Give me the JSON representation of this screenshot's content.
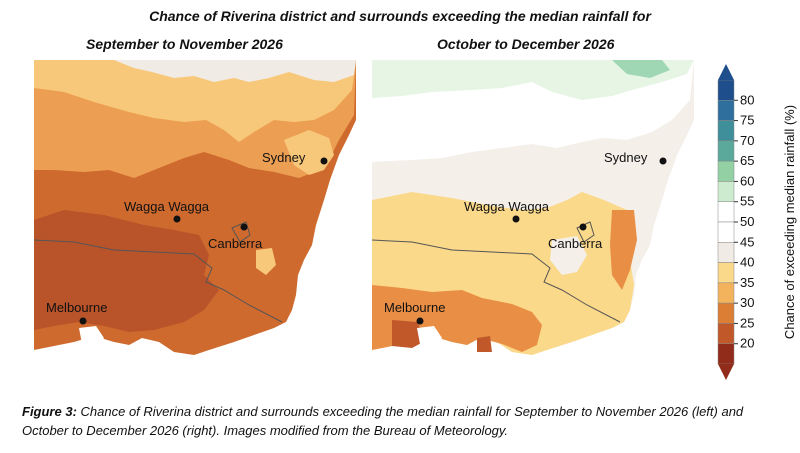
{
  "figure": {
    "title": "Chance of Riverina district and surrounds exceeding the median rainfall for",
    "left_subtitle": "September to November 2026",
    "right_subtitle": "October to December 2026"
  },
  "cities": {
    "sydney": "Sydney",
    "wagga": "Wagga Wagga",
    "canberra": "Canberra",
    "melbourne": "Melbourne"
  },
  "legend": {
    "label": "Chance of exceeding median rainfall (%)",
    "ticks": [
      "80",
      "75",
      "70",
      "65",
      "60",
      "55",
      "50",
      "45",
      "40",
      "35",
      "30",
      "25",
      "20"
    ],
    "colors": [
      "#1f4e8c",
      "#2f6f9e",
      "#3f8f9a",
      "#5aa99b",
      "#93d1a4",
      "#ccebcf",
      "#ffffff",
      "#ffffff",
      "#f0ebe5",
      "#fbd98a",
      "#f3b35c",
      "#dc7f35",
      "#c0582a",
      "#922c1a"
    ]
  },
  "caption": {
    "label": "Figure 3:",
    "text": " Chance of Riverina district and surrounds exceeding the median rainfall for September to November 2026 (left) and October to December 2026 (right). Images modified from the Bureau of Meteorology."
  }
}
